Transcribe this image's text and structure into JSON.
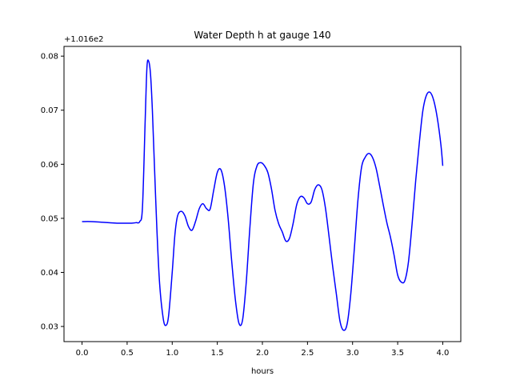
{
  "chart_data": {
    "type": "line",
    "title": "Water Depth h at gauge 140",
    "xlabel": "hours",
    "ylabel": "",
    "y_offset_label": "+1.016e2",
    "xlim": [
      -0.2,
      4.2
    ],
    "ylim": [
      0.0272,
      0.0818
    ],
    "xticks": [
      0.0,
      0.5,
      1.0,
      1.5,
      2.0,
      2.5,
      3.0,
      3.5,
      4.0
    ],
    "xtick_labels": [
      "0.0",
      "0.5",
      "1.0",
      "1.5",
      "2.0",
      "2.5",
      "3.0",
      "3.5",
      "4.0"
    ],
    "yticks": [
      0.03,
      0.04,
      0.05,
      0.06,
      0.07,
      0.08
    ],
    "ytick_labels": [
      "0.03",
      "0.04",
      "0.05",
      "0.06",
      "0.07",
      "0.08"
    ],
    "grid": false,
    "series": [
      {
        "name": "",
        "color": "#0000ff",
        "x": [
          0.0,
          0.1,
          0.2,
          0.3,
          0.4,
          0.5,
          0.55,
          0.6,
          0.64,
          0.67,
          0.7,
          0.72,
          0.74,
          0.76,
          0.78,
          0.8,
          0.83,
          0.86,
          0.9,
          0.93,
          0.96,
          1.0,
          1.03,
          1.06,
          1.1,
          1.14,
          1.18,
          1.22,
          1.26,
          1.3,
          1.34,
          1.38,
          1.42,
          1.46,
          1.5,
          1.54,
          1.58,
          1.62,
          1.66,
          1.7,
          1.74,
          1.78,
          1.82,
          1.86,
          1.9,
          1.94,
          1.98,
          2.02,
          2.06,
          2.1,
          2.14,
          2.18,
          2.22,
          2.26,
          2.3,
          2.34,
          2.38,
          2.42,
          2.46,
          2.5,
          2.54,
          2.58,
          2.62,
          2.66,
          2.7,
          2.74,
          2.78,
          2.82,
          2.86,
          2.9,
          2.94,
          2.98,
          3.02,
          3.06,
          3.1,
          3.14,
          3.18,
          3.22,
          3.26,
          3.3,
          3.34,
          3.38,
          3.42,
          3.46,
          3.5,
          3.54,
          3.58,
          3.62,
          3.66,
          3.7,
          3.74,
          3.78,
          3.82,
          3.86,
          3.9,
          3.94,
          3.98,
          4.0
        ],
        "y": [
          0.0494,
          0.0494,
          0.0493,
          0.0492,
          0.0491,
          0.0491,
          0.0491,
          0.0492,
          0.0494,
          0.052,
          0.068,
          0.078,
          0.079,
          0.0765,
          0.07,
          0.061,
          0.048,
          0.038,
          0.0315,
          0.0302,
          0.032,
          0.04,
          0.047,
          0.0505,
          0.0513,
          0.0505,
          0.0485,
          0.0478,
          0.0495,
          0.0518,
          0.0527,
          0.0518,
          0.0517,
          0.0552,
          0.0585,
          0.059,
          0.056,
          0.05,
          0.042,
          0.035,
          0.0306,
          0.0312,
          0.038,
          0.048,
          0.0565,
          0.0597,
          0.0603,
          0.0598,
          0.0585,
          0.0555,
          0.0515,
          0.049,
          0.0475,
          0.0458,
          0.0463,
          0.049,
          0.0525,
          0.054,
          0.0538,
          0.0527,
          0.053,
          0.0553,
          0.0562,
          0.0553,
          0.0518,
          0.0465,
          0.041,
          0.036,
          0.031,
          0.0293,
          0.0305,
          0.036,
          0.0445,
          0.0535,
          0.0595,
          0.0613,
          0.062,
          0.0613,
          0.0593,
          0.056,
          0.0525,
          0.0492,
          0.0465,
          0.0432,
          0.0395,
          0.0382,
          0.0385,
          0.042,
          0.049,
          0.057,
          0.064,
          0.07,
          0.0728,
          0.0733,
          0.0718,
          0.0685,
          0.0635,
          0.0597
        ]
      }
    ]
  }
}
